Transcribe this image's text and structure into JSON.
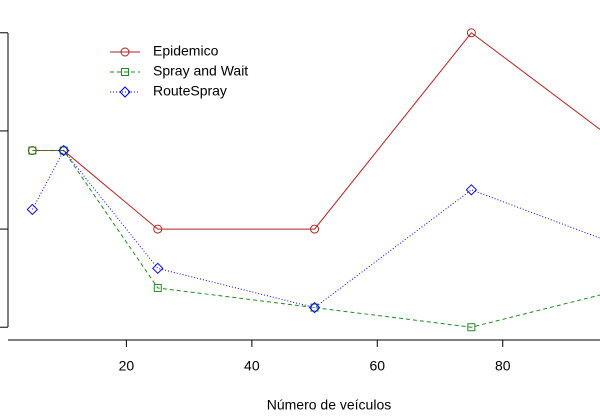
{
  "chart_data": {
    "type": "line",
    "xlabel": "Número de veículos",
    "x": [
      5,
      10,
      25,
      50,
      75,
      100
    ],
    "series": [
      {
        "name": "Epidemico",
        "color": "#b22222",
        "dash": "solid",
        "marker": "circle",
        "values": [
          1.8,
          1.8,
          1.0,
          1.0,
          3.0,
          1.8
        ]
      },
      {
        "name": "Spray and Wait",
        "color": "#228b22",
        "dash": "dashed",
        "marker": "square",
        "values": [
          1.8,
          1.8,
          0.4,
          0.2,
          0.0,
          0.4
        ]
      },
      {
        "name": "RouteSpray",
        "color": "#0000ff",
        "dash": "dotted",
        "marker": "diamond",
        "values": [
          1.2,
          1.8,
          0.6,
          0.2,
          1.4,
          0.8
        ]
      }
    ],
    "xlim": [
      1.2,
      103.8
    ],
    "xticks": [
      20,
      40,
      60,
      80
    ],
    "ylim": [
      -0.12,
      3.12
    ],
    "yticks": [
      0,
      1,
      2,
      3
    ],
    "legend": "top-left"
  }
}
